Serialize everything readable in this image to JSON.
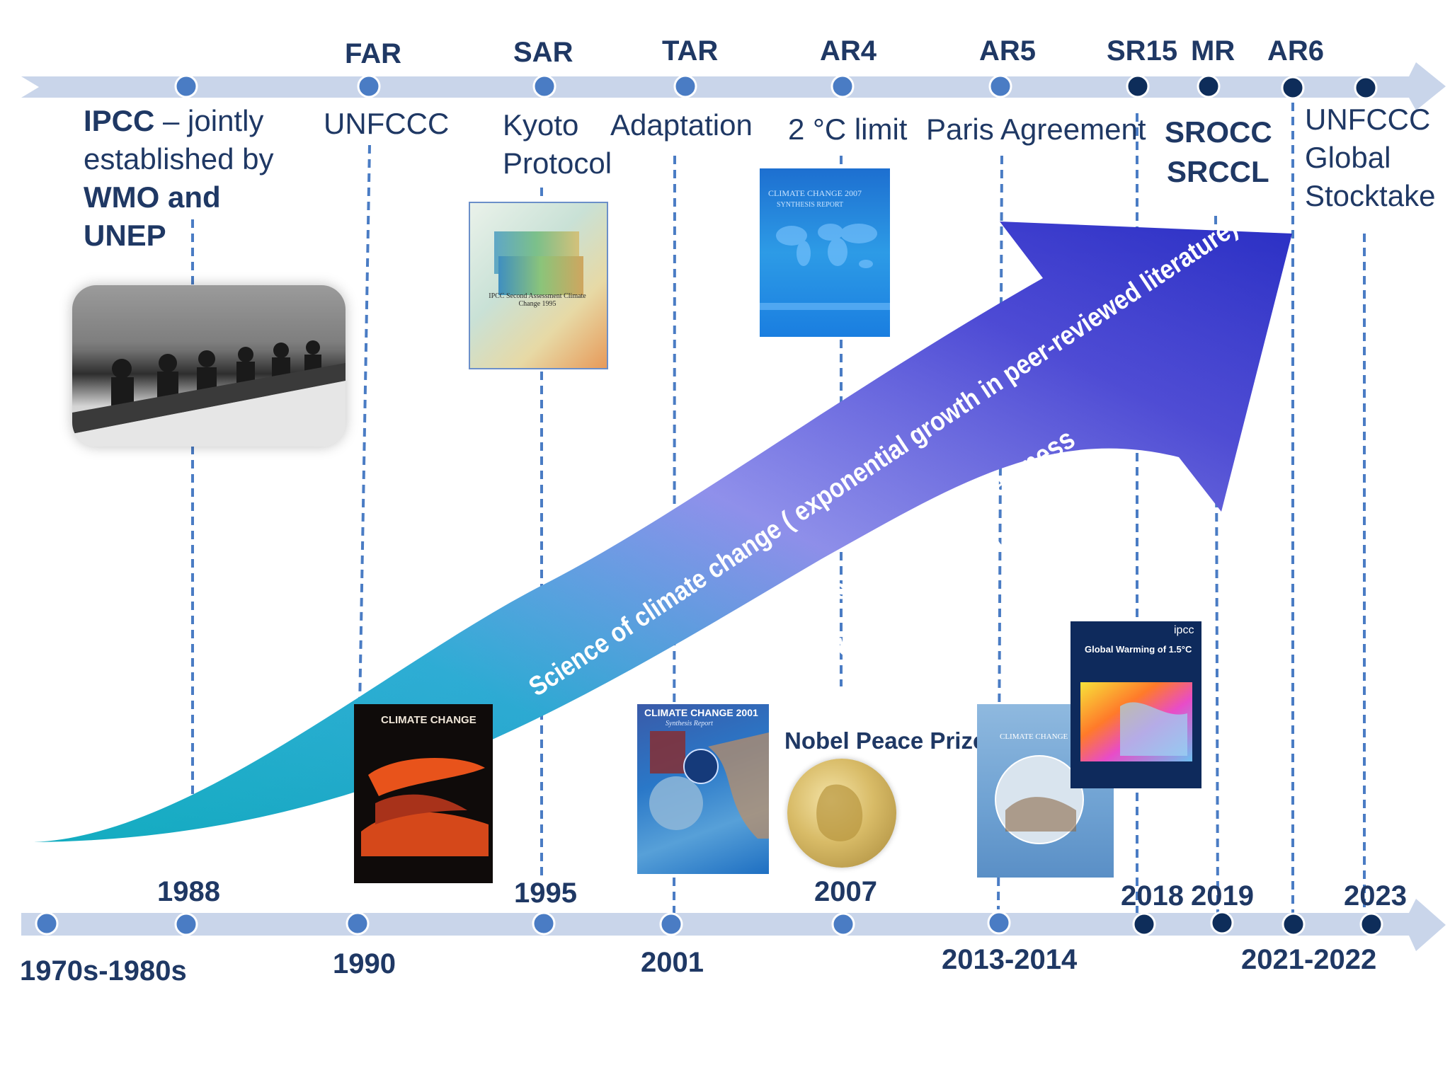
{
  "colors": {
    "timeline": "#c9d5ea",
    "dot_light": "#4a7cc4",
    "dot_dark": "#0e2d5a",
    "text": "#1f3864",
    "arrow_start": "#14c6cf",
    "arrow_mid": "#8f8fee",
    "arrow_end": "#2a2fc4"
  },
  "reports": [
    "FAR",
    "SAR",
    "TAR",
    "AR4",
    "AR5",
    "SR15",
    "MR",
    "AR6"
  ],
  "events": {
    "ipcc_prefix": "IPCC",
    "ipcc_rest": " –  jointly established by",
    "ipcc_bold": "WMO and UNEP",
    "unfccc": "UNFCCC",
    "kyoto": "Kyoto Protocol",
    "adaptation": "Adaptation",
    "two_degree": "2 °C limit",
    "paris": "Paris Agreement",
    "srocc": "SROCC",
    "srccl": "SRCCL",
    "stocktake": "UNFCCC Global Stocktake",
    "nobel": "Nobel Peace Prize"
  },
  "dates_upper": [
    "1988",
    "1995",
    "2007",
    "2018",
    "2019",
    "2023"
  ],
  "dates_lower": [
    "1970s-1980s",
    "1990",
    "2001",
    "2013-2014",
    "2021-2022"
  ],
  "arrow_text": {
    "line1": "Science of climate change ( exponential growth in peer-reviewed literature)",
    "line2": "Growing public awareness",
    "line3": "Involvement of various actors"
  },
  "covers": {
    "sar_title": "IPCC Second Assessment Climate Change 1995",
    "ar4_title": "CLIMATE CHANGE 2007",
    "ar4_sub": "SYNTHESIS REPORT",
    "far_title": "CLIMATE CHANGE",
    "tar_title": "CLIMATE CHANGE 2001",
    "tar_sub": "Synthesis Report",
    "ar5_title": "CLIMATE CHANGE",
    "sr15_brand": "ipcc",
    "sr15_title": "Global Warming of 1.5°C"
  }
}
